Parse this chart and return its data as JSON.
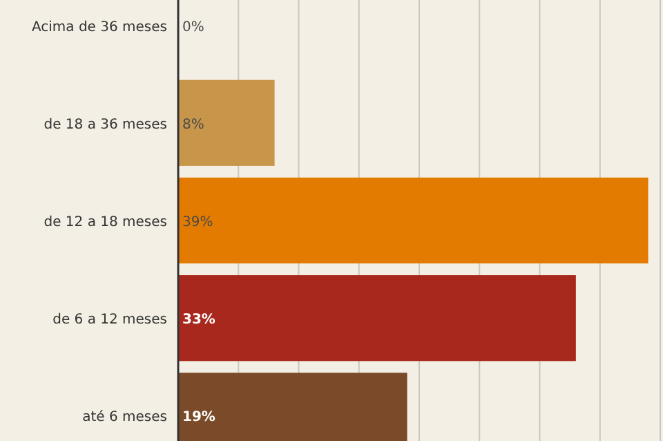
{
  "chart_data": {
    "type": "bar",
    "orientation": "horizontal",
    "categories": [
      "Acima de 36 meses",
      "de 18 a 36 meses",
      "de 12 a 18 meses",
      "de 6 a 12 meses",
      "até 6 meses"
    ],
    "values": [
      0,
      8,
      39,
      33,
      19
    ],
    "colors": [
      "#c8964a",
      "#c8964a",
      "#e27b00",
      "#a8281e",
      "#7a4a29"
    ],
    "value_labels": [
      "0%",
      "8%",
      "39%",
      "33%",
      "19%"
    ],
    "xlim": [
      0,
      40
    ],
    "xticks": [
      {
        "value": 0,
        "label": null
      },
      {
        "value": 5,
        "label": null
      },
      {
        "value": 10,
        "label": null
      },
      {
        "value": 15,
        "label": null
      },
      {
        "value": 20,
        "label": null
      },
      {
        "value": 25,
        "label": null
      },
      {
        "value": 30,
        "label": null
      },
      {
        "value": 35,
        "label": null
      },
      {
        "value": 40,
        "label": null
      }
    ],
    "tick_labels": "y",
    "grid": "x"
  }
}
